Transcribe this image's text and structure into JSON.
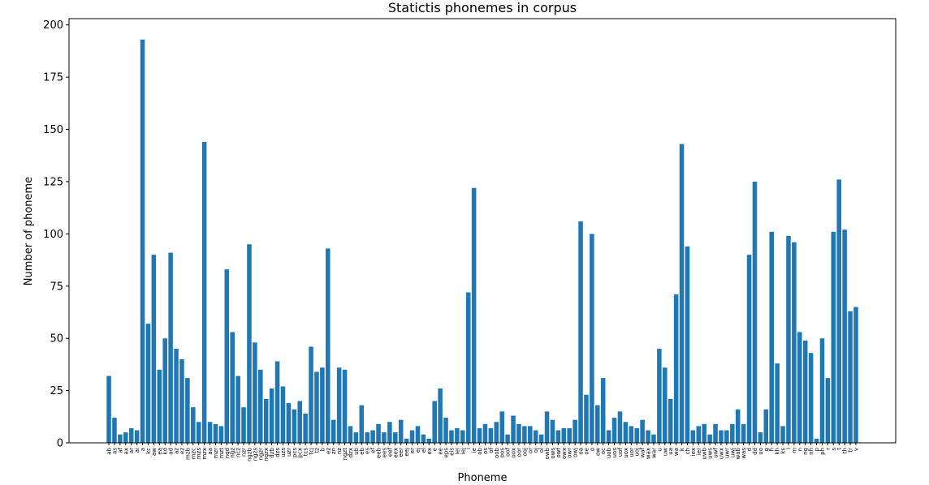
{
  "chart_data": {
    "type": "bar",
    "title": "Statictis phonemes in corpus",
    "x_label": "Phoneme",
    "y_label": "Number of phoneme",
    "categories": [
      "ab",
      "as",
      "af",
      "ax",
      "ar",
      "ai",
      "a",
      "kc",
      "aw",
      "ea",
      "kd",
      "ad",
      "az",
      "ez",
      "mzb",
      "mzc",
      "mzs",
      "mzx",
      "aa",
      "mzr",
      "mzt",
      "ngd",
      "ngz",
      "ncz",
      "nzr",
      "ngzb",
      "ngzs",
      "ngzr",
      "ngzx",
      "dzb",
      "dzs",
      "uzs",
      "uzr",
      "pcs",
      "pcx",
      "tcs",
      "tcj",
      "tz",
      "b",
      "ez",
      "zn",
      "nz",
      "ngzt",
      "dzx",
      "ub",
      "eb",
      "es",
      "ef",
      "eeb",
      "ees",
      "eef",
      "eex",
      "eer",
      "eej",
      "er",
      "ej",
      "el",
      "ex",
      "e",
      "ee",
      "eps",
      "eis",
      "iei",
      "iej",
      "i",
      "ie",
      "ob",
      "os",
      "of",
      "oob",
      "oos",
      "oof",
      "oox",
      "oor",
      "ooj",
      "or",
      "oj",
      "ol",
      "owb",
      "ows",
      "owf",
      "owx",
      "owr",
      "owj",
      "oa",
      "oe",
      "o",
      "ow",
      "oc",
      "uob",
      "uos",
      "uof",
      "uox",
      "uor",
      "uoj",
      "waf",
      "wax",
      "war",
      "u",
      "uw",
      "ua",
      "wa",
      "k",
      "ch",
      "iex",
      "ier",
      "uwb",
      "uws",
      "uwf",
      "uwx",
      "uwr",
      "uwj",
      "wab",
      "was",
      "d",
      "dd",
      "uo",
      "g",
      "h",
      "kh",
      "ks",
      "l",
      "m",
      "n",
      "ng",
      "nh",
      "p",
      "ph",
      "r",
      "s",
      "t",
      "th",
      "tr",
      "v"
    ],
    "values": [
      32,
      12,
      4,
      5,
      7,
      6,
      193,
      57,
      90,
      35,
      50,
      91,
      45,
      40,
      31,
      17,
      10,
      144,
      10,
      9,
      8,
      83,
      53,
      32,
      17,
      95,
      48,
      35,
      21,
      26,
      39,
      27,
      19,
      16,
      20,
      14,
      46,
      34,
      36,
      93,
      11,
      36,
      35,
      8,
      5,
      18,
      5,
      6,
      9,
      5,
      10,
      5,
      11,
      2,
      6,
      8,
      4,
      2,
      20,
      26,
      12,
      6,
      7,
      6,
      72,
      122,
      7,
      9,
      7,
      10,
      15,
      4,
      13,
      9,
      8,
      8,
      6,
      4,
      15,
      11,
      6,
      7,
      7,
      11,
      106,
      23,
      100,
      18,
      31,
      6,
      12,
      15,
      10,
      8,
      7,
      11,
      6,
      4,
      45,
      36,
      21,
      71,
      143,
      94,
      6,
      8,
      9,
      4,
      9,
      6,
      6,
      9,
      16,
      9,
      90,
      125,
      5,
      16,
      101,
      38,
      8,
      99,
      96,
      53,
      49,
      43,
      2,
      50,
      31,
      101,
      126,
      102,
      63,
      65
    ],
    "color": "#1f77b4",
    "ylim": [
      0,
      203
    ],
    "yticks": [
      0,
      25,
      50,
      75,
      100,
      125,
      150,
      175,
      200
    ],
    "grid": false
  }
}
